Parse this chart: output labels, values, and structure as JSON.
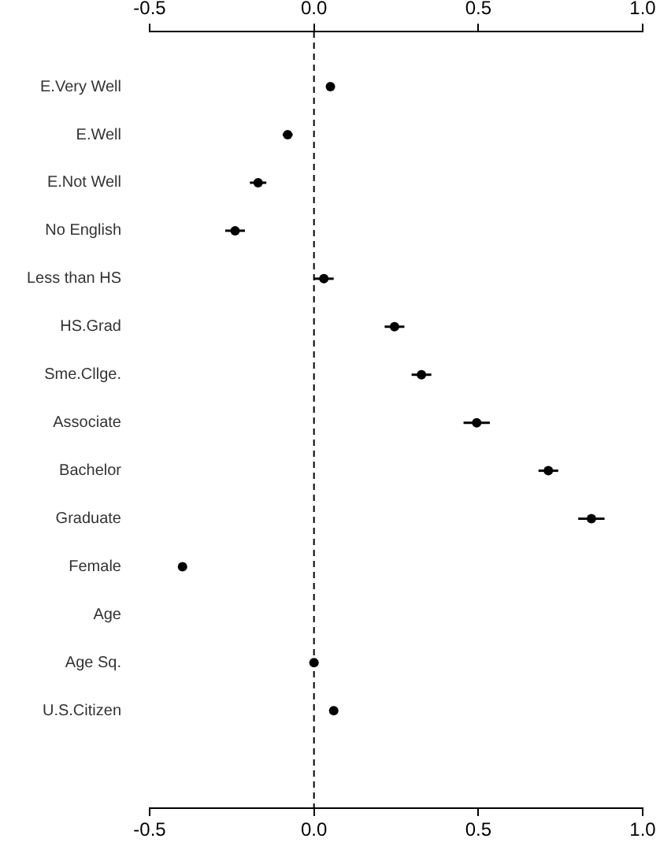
{
  "chart_data": {
    "type": "scatter",
    "orientation": "horizontal",
    "categories": [
      "E.Very Well",
      "E.Well",
      "E.Not Well",
      "No English",
      "Less than HS",
      "HS.Grad",
      "Sme.Cllge.",
      "Associate",
      "Bachelor",
      "Graduate",
      "Female",
      "Age",
      "Age Sq.",
      "U.S.Citizen"
    ],
    "values": [
      0.05,
      -0.08,
      -0.17,
      -0.24,
      0.03,
      0.245,
      0.327,
      0.495,
      0.713,
      0.844,
      -0.4,
      null,
      0.0,
      0.06
    ],
    "errors": [
      0.01,
      0.015,
      0.025,
      0.03,
      0.03,
      0.03,
      0.03,
      0.04,
      0.03,
      0.04,
      null,
      null,
      null,
      null
    ],
    "color": "#000000",
    "marker": "circle",
    "xlim": [
      -0.5,
      1.0
    ],
    "xticks": [
      {
        "value": -0.5,
        "label": "-0.5"
      },
      {
        "value": 0,
        "label": "0.0"
      },
      {
        "value": 0.5,
        "label": "0.5"
      },
      {
        "value": 1.0,
        "label": "1.0"
      }
    ],
    "x2lim": [
      -0.5,
      1.0
    ],
    "x2ticks": [
      {
        "value": -0.5,
        "label": "-0.5"
      },
      {
        "value": 0,
        "label": "0.0"
      },
      {
        "value": 0.5,
        "label": "0.5"
      },
      {
        "value": 1.0,
        "label": "1.0"
      }
    ],
    "ref_lines": [
      {
        "axis": "x",
        "value": 0,
        "line_style": "dashed",
        "color": "#000000"
      }
    ],
    "grid": false,
    "legend": false
  }
}
